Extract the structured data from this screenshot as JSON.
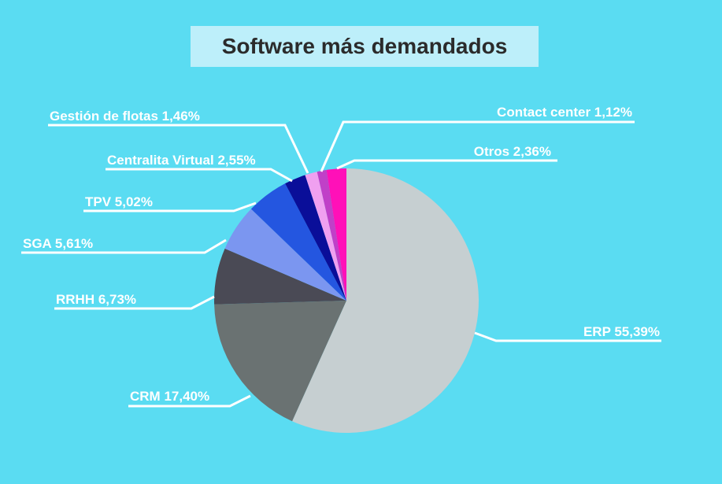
{
  "chart_data": {
    "type": "pie",
    "title": "Software más demandados",
    "slices": [
      {
        "name": "ERP",
        "value": 55.39,
        "label": "ERP 55,39%",
        "color": "#c6cfd1"
      },
      {
        "name": "CRM",
        "value": 17.4,
        "label": "CRM 17,40%",
        "color": "#6a7272"
      },
      {
        "name": "RRHH",
        "value": 6.73,
        "label": "RRHH 6,73%",
        "color": "#4a4a55"
      },
      {
        "name": "SGA",
        "value": 5.61,
        "label": "SGA 5,61%",
        "color": "#7b96f0"
      },
      {
        "name": "TPV",
        "value": 5.02,
        "label": "TPV 5,02%",
        "color": "#2456e0"
      },
      {
        "name": "Centralita Virtual",
        "value": 2.55,
        "label": "Centralita Virtual 2,55%",
        "color": "#0a0e99"
      },
      {
        "name": "Gestión de flotas",
        "value": 1.46,
        "label": "Gestión de flotas 1,46%",
        "color": "#f0a0f0"
      },
      {
        "name": "Contact center",
        "value": 1.12,
        "label": "Contact center 1,12%",
        "color": "#c040c8"
      },
      {
        "name": "Otros",
        "value": 2.36,
        "label": "Otros 2,36%",
        "color": "#ff10b8"
      }
    ]
  }
}
